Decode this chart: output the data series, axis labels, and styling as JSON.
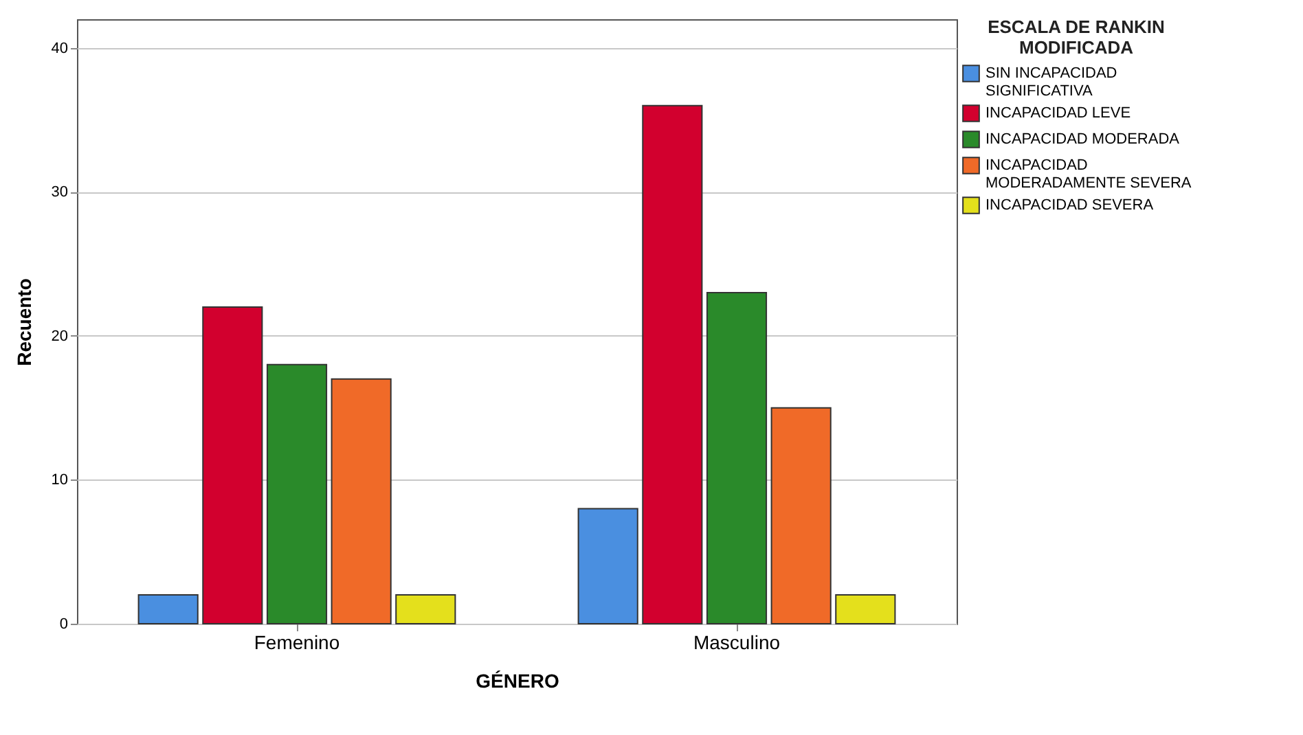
{
  "chart_data": {
    "type": "bar",
    "xlabel": "GÉNERO",
    "ylabel": "Recuento",
    "legend_title": "ESCALA DE RANKIN MODIFICADA",
    "categories": [
      "Femenino",
      "Masculino"
    ],
    "series": [
      {
        "name": "SIN INCAPACIDAD SIGNIFICATIVA",
        "color": "#4a8fe0",
        "values": [
          2,
          8
        ]
      },
      {
        "name": "INCAPACIDAD LEVE",
        "color": "#d2002e",
        "values": [
          22,
          36
        ]
      },
      {
        "name": "INCAPACIDAD MODERADA",
        "color": "#2a8a2a",
        "values": [
          18,
          23
        ]
      },
      {
        "name": "INCAPACIDAD MODERADAMENTE SEVERA",
        "color": "#f06a28",
        "values": [
          17,
          15
        ]
      },
      {
        "name": "INCAPACIDAD SEVERA",
        "color": "#e4e01c",
        "values": [
          2,
          2
        ]
      }
    ],
    "ylim": [
      0,
      42
    ],
    "yticks": [
      0,
      10,
      20,
      30,
      40
    ],
    "grid": "y",
    "legend": "top right"
  }
}
